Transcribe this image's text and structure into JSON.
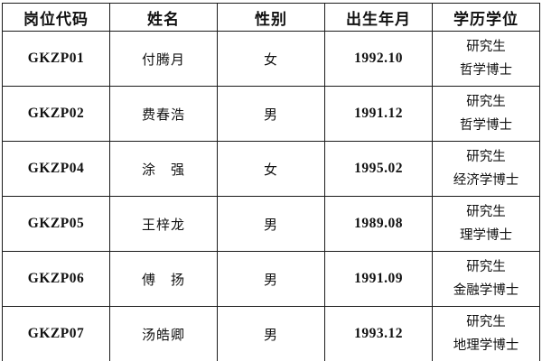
{
  "page": {
    "background_color": "#ffffff",
    "border_color": "#1a1a1a",
    "text_color": "#111111"
  },
  "table": {
    "columns": [
      {
        "key": "code",
        "label": "岗位代码"
      },
      {
        "key": "name",
        "label": "姓名"
      },
      {
        "key": "gender",
        "label": "性别"
      },
      {
        "key": "birth",
        "label": "出生年月"
      },
      {
        "key": "edu",
        "label": "学历学位"
      }
    ],
    "rows": [
      {
        "code": "GKZP01",
        "name": "付腾月",
        "gender": "女",
        "birth": "1992.10",
        "edu_line1": "研究生",
        "edu_line2": "哲学博士"
      },
      {
        "code": "GKZP02",
        "name": "费春浩",
        "gender": "男",
        "birth": "1991.12",
        "edu_line1": "研究生",
        "edu_line2": "哲学博士"
      },
      {
        "code": "GKZP04",
        "name": "涂　强",
        "gender": "女",
        "birth": "1995.02",
        "edu_line1": "研究生",
        "edu_line2": "经济学博士"
      },
      {
        "code": "GKZP05",
        "name": "王梓龙",
        "gender": "男",
        "birth": "1989.08",
        "edu_line1": "研究生",
        "edu_line2": "理学博士"
      },
      {
        "code": "GKZP06",
        "name": "傅　扬",
        "gender": "男",
        "birth": "1991.09",
        "edu_line1": "研究生",
        "edu_line2": "金融学博士"
      },
      {
        "code": "GKZP07",
        "name": "汤皓卿",
        "gender": "男",
        "birth": "1993.12",
        "edu_line1": "研究生",
        "edu_line2": "地理学博士"
      }
    ]
  }
}
